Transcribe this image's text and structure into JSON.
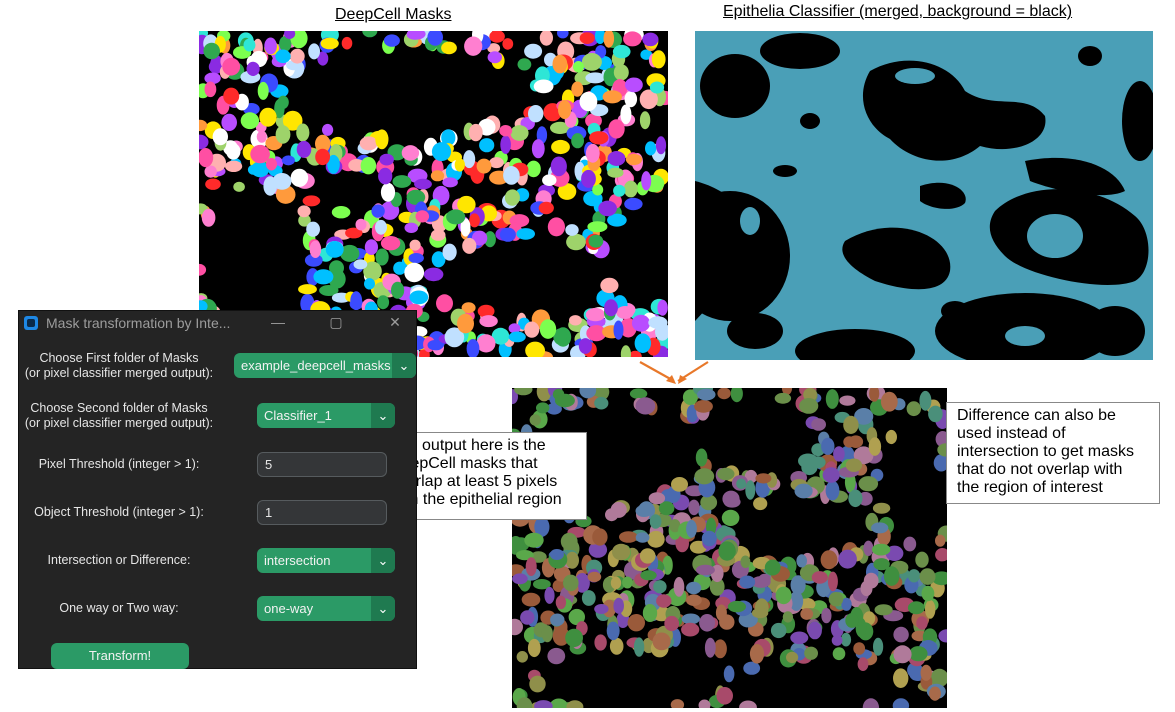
{
  "captions": {
    "deepcell": "DeepCell Masks",
    "classifier": "Epithelia Classifier (merged, background = black)"
  },
  "notes": {
    "output": "The output here is the\nDeepCell masks that\noverlap at least 5 pixels\nwith the epithelial region",
    "difference": "Difference can also be\nused instead of\nintersection to get masks\nthat do not overlap with\nthe region of interest"
  },
  "colors": {
    "classifier_region": "#4a9fb7",
    "accent_green": "#2b9a66",
    "arrow": "#e8782a",
    "dialog_bg": "#242424"
  },
  "dialog": {
    "title": "Mask transformation by Inte...",
    "minimize_icon": "minimize-icon",
    "maximize_icon": "maximize-icon",
    "close_icon": "close-icon",
    "first_folder_label": "Choose First folder of Masks\n(or pixel classifier merged output):",
    "first_folder_value": "example_deepcell_masks",
    "second_folder_label": "Choose Second folder of Masks\n(or pixel classifier merged output):",
    "second_folder_value": "Classifier_1",
    "pixel_threshold_label": "Pixel Threshold (integer > 1):",
    "pixel_threshold_value": "5",
    "object_threshold_label": "Object Threshold (integer > 1):",
    "object_threshold_value": "1",
    "mode_label": "Intersection or Difference:",
    "mode_value": "intersection",
    "direction_label": "One way or Two way:",
    "direction_value": "one-way",
    "transform_button": "Transform!"
  }
}
